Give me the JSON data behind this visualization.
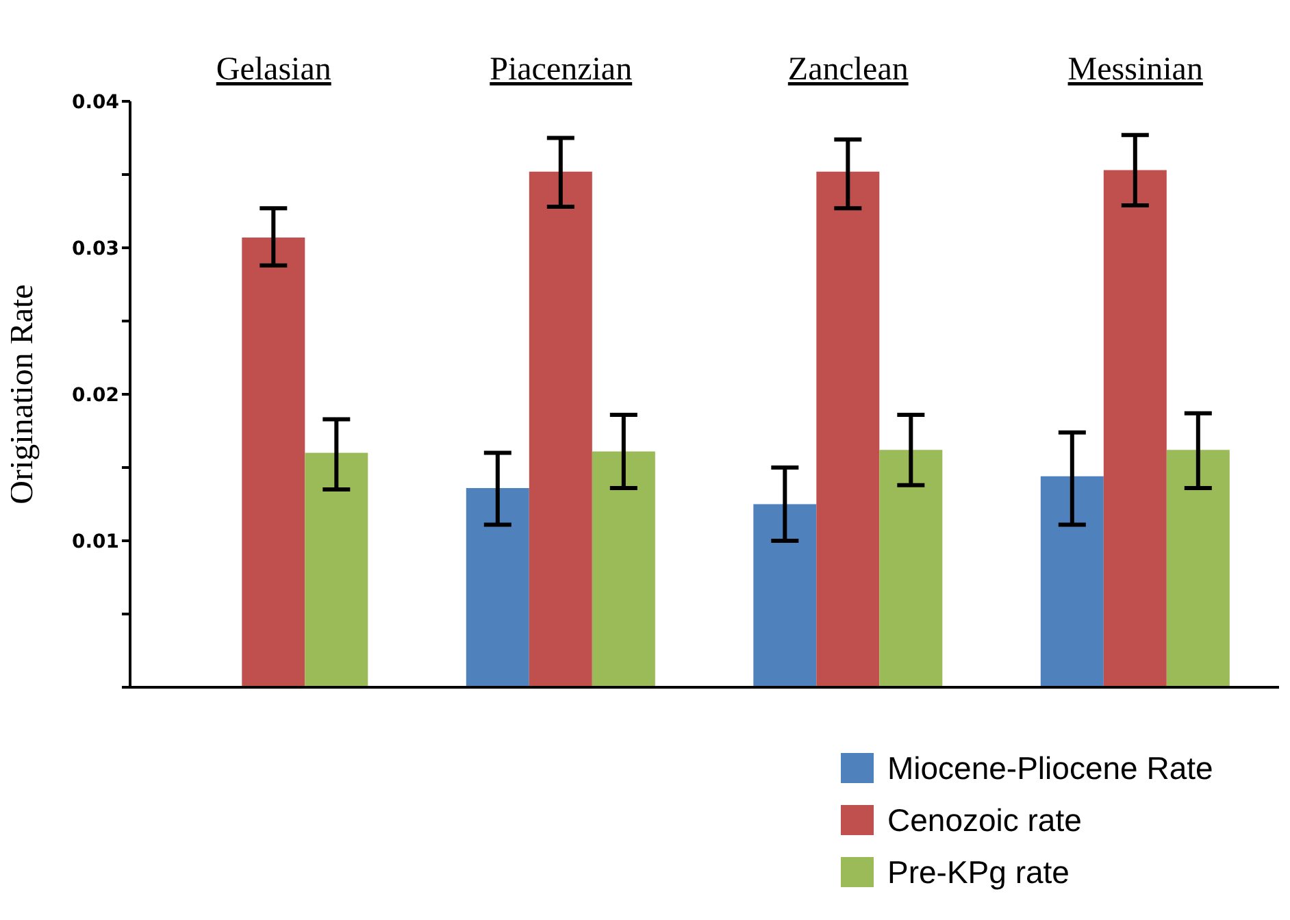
{
  "chart_data": {
    "type": "bar",
    "ylabel": "Origination Rate",
    "categories": [
      "Gelasian",
      "Piacenzian",
      "Zanclean",
      "Messinian"
    ],
    "series": [
      {
        "name": "Miocene-Pliocene Rate",
        "color": "#4f81bd",
        "values": [
          null,
          0.0136,
          0.0125,
          0.0144
        ],
        "errors": [
          null,
          [
            0.0111,
            0.016
          ],
          [
            0.01,
            0.015
          ],
          [
            0.0111,
            0.0174
          ]
        ]
      },
      {
        "name": "Cenozoic rate",
        "color": "#c0504d",
        "values": [
          0.0307,
          0.0352,
          0.0352,
          0.0353
        ],
        "errors": [
          [
            0.0288,
            0.0327
          ],
          [
            0.0328,
            0.0375
          ],
          [
            0.0327,
            0.0374
          ],
          [
            0.0329,
            0.0377
          ]
        ]
      },
      {
        "name": "Pre-KPg rate",
        "color": "#9bbb59",
        "values": [
          0.016,
          0.0161,
          0.0162,
          0.0162
        ],
        "errors": [
          [
            0.0135,
            0.0183
          ],
          [
            0.0136,
            0.0186
          ],
          [
            0.0138,
            0.0186
          ],
          [
            0.0136,
            0.0187
          ]
        ]
      }
    ],
    "ylim": [
      0,
      0.04
    ],
    "yticks": [
      {
        "value": 0,
        "label": null
      },
      {
        "value": 0.005,
        "label": null
      },
      0.01,
      {
        "value": 0.015,
        "label": null
      },
      0.02,
      {
        "value": 0.025,
        "label": null
      },
      0.03,
      {
        "value": 0.035,
        "label": null
      },
      0.04
    ],
    "grid": false,
    "legend": "bottom right"
  }
}
